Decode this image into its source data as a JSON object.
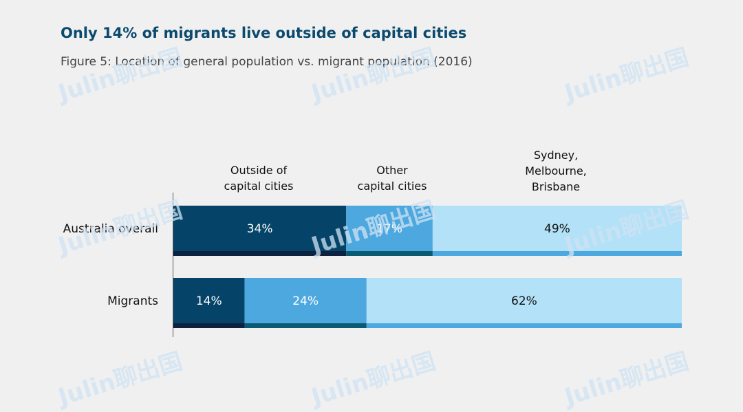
{
  "header": {
    "title": "Only 14% of migrants live outside of capital cities",
    "subtitle": "Figure 5: Location of general population vs. migrant population (2016)"
  },
  "watermark": {
    "text": "Julin聊出国"
  },
  "chart_data": {
    "type": "bar",
    "orientation": "horizontal",
    "stacked": true,
    "title": "",
    "xlim": [
      0,
      100
    ],
    "categories": [
      "Australia overall",
      "Migrants"
    ],
    "series": [
      {
        "name": "Outside of capital cities",
        "values": [
          34,
          14
        ],
        "color": "#054468",
        "edge_color": "#0c2240"
      },
      {
        "name": "Other capital cities",
        "values": [
          17,
          24
        ],
        "color": "#4da8e0",
        "edge_color": "#0a5a72"
      },
      {
        "name": "Sydney, Melbourne, Brisbane",
        "values": [
          49,
          62
        ],
        "color": "#b3e1f7",
        "edge_color": "#4da8e0"
      }
    ],
    "data_labels": [
      [
        "34%",
        "17%",
        "49%"
      ],
      [
        "14%",
        "24%",
        "62%"
      ]
    ],
    "grid": false,
    "legend": "top, column headers"
  }
}
